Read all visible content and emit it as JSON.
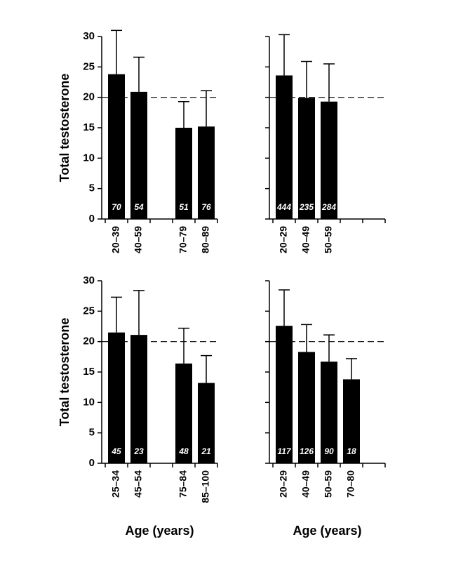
{
  "chart_data": [
    {
      "type": "bar",
      "ylabel": "Total testosterone",
      "categories": [
        "20–39",
        "40–59",
        null,
        "70–79",
        "80–89"
      ],
      "values": [
        23.8,
        20.9,
        null,
        15.0,
        15.2
      ],
      "errors": [
        7.2,
        5.7,
        null,
        4.3,
        5.9
      ],
      "sample_sizes": [
        70,
        54,
        null,
        51,
        76
      ],
      "ylim": [
        0,
        30
      ],
      "yticks": [
        0,
        5,
        10,
        15,
        20,
        25,
        30
      ],
      "ytick_labels": true,
      "reference_line": 20,
      "color": "#000000"
    },
    {
      "type": "bar",
      "categories": [
        "20–29",
        "40–49",
        "50–59",
        null,
        null
      ],
      "values": [
        23.6,
        19.9,
        19.3,
        null,
        null
      ],
      "errors": [
        6.7,
        6.0,
        6.2,
        null,
        null
      ],
      "sample_sizes": [
        444,
        235,
        284,
        null,
        null
      ],
      "ylim": [
        0,
        30
      ],
      "yticks": [
        0,
        5,
        10,
        15,
        20,
        25,
        30
      ],
      "ytick_labels": false,
      "reference_line": 20,
      "color": "#000000"
    },
    {
      "type": "bar",
      "ylabel": "Total testosterone",
      "xlabel": "Age (years)",
      "categories": [
        "25–34",
        "45–54",
        null,
        "75–84",
        "85–100"
      ],
      "values": [
        21.5,
        21.1,
        null,
        16.4,
        13.2
      ],
      "errors": [
        5.8,
        7.3,
        null,
        5.8,
        4.5
      ],
      "sample_sizes": [
        45,
        23,
        null,
        48,
        21
      ],
      "ylim": [
        0,
        30
      ],
      "yticks": [
        0,
        5,
        10,
        15,
        20,
        25,
        30
      ],
      "ytick_labels": true,
      "reference_line": 20,
      "color": "#000000"
    },
    {
      "type": "bar",
      "xlabel": "Age (years)",
      "categories": [
        "20–29",
        "40–49",
        "50–59",
        "70–80",
        null
      ],
      "values": [
        22.6,
        18.3,
        16.7,
        13.8,
        null
      ],
      "errors": [
        5.9,
        4.5,
        4.4,
        3.4,
        null
      ],
      "sample_sizes": [
        117,
        126,
        90,
        18,
        null
      ],
      "ylim": [
        0,
        30
      ],
      "yticks": [
        0,
        5,
        10,
        15,
        20,
        25,
        30
      ],
      "ytick_labels": false,
      "reference_line": 20,
      "color": "#000000"
    }
  ]
}
